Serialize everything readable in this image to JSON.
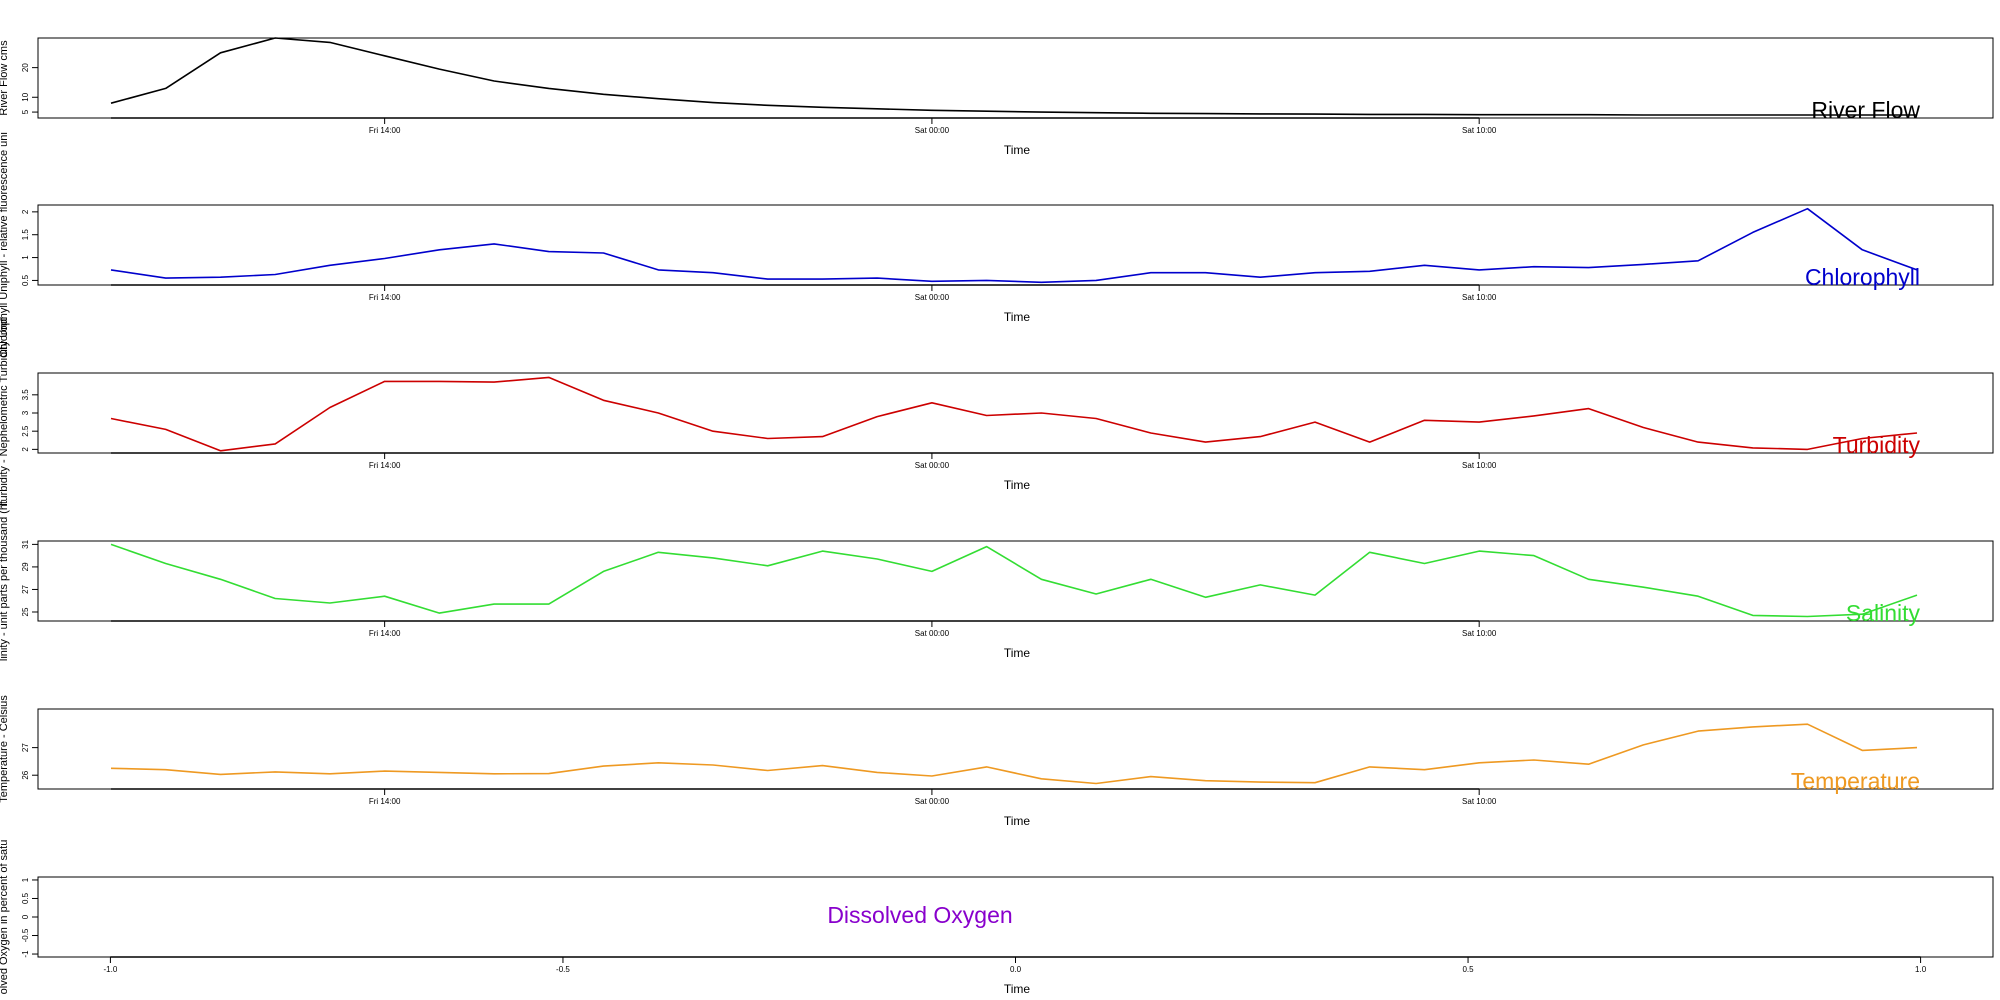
{
  "chart_data": [
    {
      "type": "line",
      "ylabel": "River Flow cms",
      "xlabel": "Time",
      "title": "River Flow",
      "title_color": "#000000",
      "line_color": "#000000",
      "ylim": [
        3,
        30
      ],
      "yticks": [
        5,
        10,
        20
      ],
      "xtick_labels": [
        "Fri 14:00",
        "Sat 00:00",
        "Sat 10:00"
      ],
      "xtick_positions": [
        5,
        15,
        25
      ],
      "values": [
        8,
        13,
        25,
        30,
        28.5,
        24,
        19.5,
        15.5,
        13,
        11,
        9.5,
        8.2,
        7.3,
        6.6,
        6.1,
        5.6,
        5.3,
        5.0,
        4.8,
        4.6,
        4.5,
        4.4,
        4.3,
        4.2,
        4.2,
        4.1,
        4.1,
        4.1,
        4.0,
        4.0,
        4.0,
        4.0,
        4.0,
        4.0
      ]
    },
    {
      "type": "line",
      "ylabel": "Chlorophyll Uniphyll - relative fluorescence uni",
      "xlabel": "Time",
      "title": "Chlorophyll",
      "title_color": "#0000cc",
      "line_color": "#0000cc",
      "ylim": [
        0.4,
        2.15
      ],
      "yticks": [
        0.5,
        1.0,
        1.5,
        2.0
      ],
      "xtick_labels": [
        "Fri 14:00",
        "Sat 00:00",
        "Sat 10:00"
      ],
      "xtick_positions": [
        5,
        15,
        25
      ],
      "values": [
        0.73,
        0.55,
        0.57,
        0.63,
        0.83,
        0.98,
        1.17,
        1.3,
        1.13,
        1.1,
        0.73,
        0.67,
        0.53,
        0.53,
        0.55,
        0.48,
        0.5,
        0.46,
        0.5,
        0.67,
        0.67,
        0.57,
        0.67,
        0.7,
        0.83,
        0.73,
        0.8,
        0.78,
        0.85,
        0.93,
        1.55,
        2.07,
        1.17,
        0.73
      ]
    },
    {
      "type": "line",
      "ylabel": "Turbidity - Nephelometric Turbidity Unit",
      "xlabel": "Time",
      "title": "Turbidity",
      "title_color": "#cc0000",
      "line_color": "#cc0000",
      "ylim": [
        1.9,
        4.1
      ],
      "yticks": [
        2.0,
        2.5,
        3.0,
        3.5
      ],
      "xtick_labels": [
        "Fri 14:00",
        "Sat 00:00",
        "Sat 10:00"
      ],
      "xtick_positions": [
        5,
        15,
        25
      ],
      "values": [
        2.85,
        2.55,
        1.96,
        2.15,
        3.15,
        3.87,
        3.87,
        3.85,
        3.98,
        3.35,
        3.0,
        2.5,
        2.3,
        2.35,
        2.9,
        3.28,
        2.93,
        3.0,
        2.85,
        2.45,
        2.2,
        2.35,
        2.75,
        2.2,
        2.8,
        2.75,
        2.92,
        3.12,
        2.6,
        2.2,
        2.04,
        2.0,
        2.3,
        2.45
      ]
    },
    {
      "type": "line",
      "ylabel": "linity - unit parts per thousand (ht",
      "xlabel": "Time",
      "title": "Salinity",
      "title_color": "#33dd33",
      "line_color": "#33dd33",
      "ylim": [
        24.2,
        31.3
      ],
      "yticks": [
        25,
        27,
        29,
        31
      ],
      "xtick_labels": [
        "Fri 14:00",
        "Sat 00:00",
        "Sat 10:00"
      ],
      "xtick_positions": [
        5,
        15,
        25
      ],
      "values": [
        31.0,
        29.3,
        27.9,
        26.2,
        25.8,
        26.4,
        24.9,
        25.7,
        25.7,
        28.6,
        30.3,
        29.8,
        29.1,
        30.4,
        29.7,
        28.6,
        30.8,
        27.9,
        26.6,
        27.9,
        26.3,
        27.4,
        26.5,
        30.3,
        29.3,
        30.4,
        30.0,
        27.9,
        27.2,
        26.4,
        24.7,
        24.6,
        24.8,
        26.5
      ]
    },
    {
      "type": "line",
      "ylabel": "Temperature - Celsius",
      "xlabel": "Time",
      "title": "Temperature",
      "title_color": "#ee9922",
      "line_color": "#ee9922",
      "ylim": [
        25.5,
        28.4
      ],
      "yticks": [
        26.0,
        27.0
      ],
      "xtick_labels": [
        "Fri 14:00",
        "Sat 00:00",
        "Sat 10:00"
      ],
      "xtick_positions": [
        5,
        15,
        25
      ],
      "values": [
        26.25,
        26.2,
        26.03,
        26.12,
        26.05,
        26.15,
        26.1,
        26.05,
        26.06,
        26.33,
        26.45,
        26.37,
        26.17,
        26.35,
        26.1,
        25.97,
        26.3,
        25.87,
        25.7,
        25.95,
        25.8,
        25.75,
        25.73,
        26.3,
        26.2,
        26.45,
        26.55,
        26.4,
        27.1,
        27.6,
        27.75,
        27.85,
        26.9,
        27.0
      ]
    },
    {
      "type": "line",
      "ylabel": "olved Oxygen in percent of satu",
      "xlabel": "Time",
      "title": "Dissolved Oxygen",
      "title_color": "#8800cc",
      "line_color": "#8800cc",
      "ylim": [
        -1.08,
        1.08
      ],
      "yticks": [
        -1.0,
        -0.5,
        0.0,
        0.5,
        1.0
      ],
      "xlim": [
        -1.08,
        1.08
      ],
      "xticks": [
        -1.0,
        -0.5,
        0.0,
        0.5,
        1.0
      ],
      "xtick_labels": [
        "-1.0",
        "-0.5",
        "0.0",
        "0.5",
        "1.0"
      ],
      "values": []
    }
  ]
}
